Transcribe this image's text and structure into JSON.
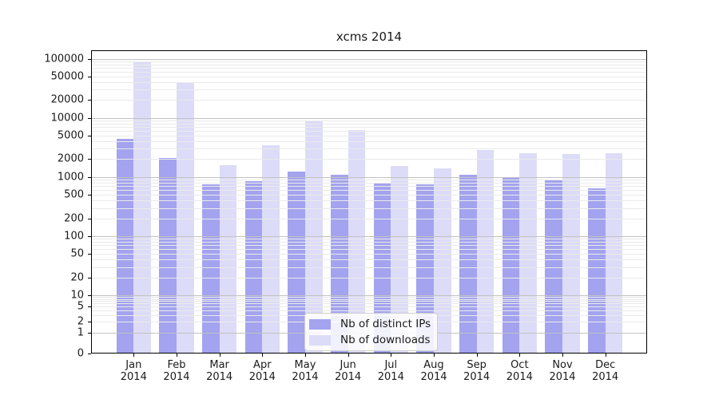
{
  "chart_data": {
    "type": "bar",
    "title": "xcms 2014",
    "categories": [
      "Jan 2014",
      "Feb 2014",
      "Mar 2014",
      "Apr 2014",
      "May 2014",
      "Jun 2014",
      "Jul 2014",
      "Aug 2014",
      "Sep 2014",
      "Oct 2014",
      "Nov 2014",
      "Dec 2014"
    ],
    "series": [
      {
        "name": "Nb of distinct IPs",
        "color": "#a3a3ef",
        "values": [
          4400,
          2100,
          760,
          840,
          1230,
          1080,
          810,
          750,
          1090,
          960,
          880,
          650
        ]
      },
      {
        "name": "Nb of downloads",
        "color": "#dcdcf8",
        "values": [
          86000,
          39000,
          1600,
          3400,
          9000,
          6200,
          1550,
          1400,
          2900,
          2550,
          2450,
          2550
        ]
      }
    ],
    "xlabel": "",
    "ylabel": "",
    "yscale": "symlog",
    "ylim": [
      0,
      140000
    ],
    "yticks": [
      0,
      1,
      2,
      5,
      10,
      20,
      50,
      100,
      200,
      500,
      1000,
      2000,
      5000,
      10000,
      20000,
      50000,
      100000
    ],
    "grid": "horizontal major+minor, drawn over bars",
    "legend_position": "lower center"
  },
  "colors": {
    "bar_distinct_ips": "#a3a3ef",
    "bar_downloads": "#dcdcf8",
    "major_grid": "#c2c2c2",
    "minor_grid": "#eaeaea",
    "spine": "#000000",
    "text": "#1a1a1a",
    "legend_border": "#cfcfcf",
    "background": "#ffffff"
  }
}
